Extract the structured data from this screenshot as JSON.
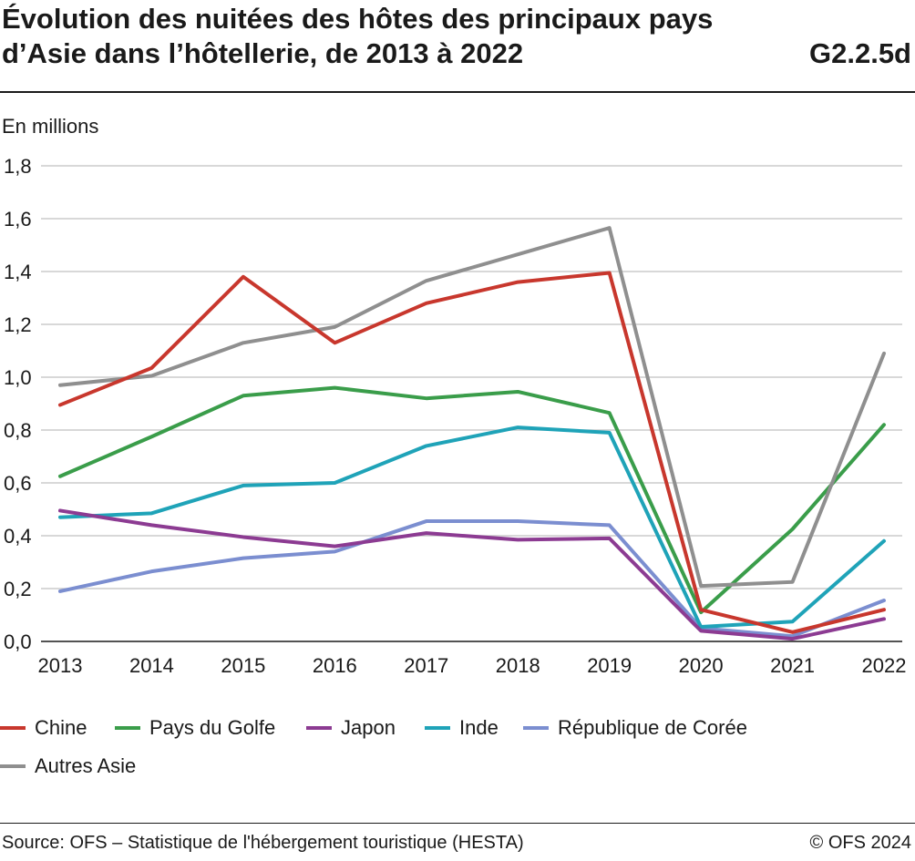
{
  "header": {
    "title_line1": "Évolution des nuitées des hôtes des principaux pays",
    "title_line2": "d’Asie dans l’hôtellerie, de 2013 à 2022",
    "code": "G2.2.5d"
  },
  "footer": {
    "source": "Source: OFS – Statistique de l'hébergement touristique (HESTA)",
    "copyright": "© OFS 2024"
  },
  "chart_data": {
    "type": "line",
    "title": "Évolution des nuitées des hôtes des principaux pays d’Asie dans l’hôtellerie, de 2013 à 2022",
    "ylabel": "En millions",
    "xlabel": "",
    "ylim": [
      0,
      1.8
    ],
    "yticks": [
      "0,0",
      "0,2",
      "0,4",
      "0,6",
      "0,8",
      "1,0",
      "1,2",
      "1,4",
      "1,6",
      "1,8"
    ],
    "categories": [
      "2013",
      "2014",
      "2015",
      "2016",
      "2017",
      "2018",
      "2019",
      "2020",
      "2021",
      "2022"
    ],
    "grid": true,
    "legend_position": "bottom",
    "series": [
      {
        "name": "Chine",
        "color": "#c8372d",
        "values": [
          0.895,
          1.035,
          1.38,
          1.13,
          1.28,
          1.36,
          1.395,
          0.12,
          0.035,
          0.12
        ]
      },
      {
        "name": "Pays du Golfe",
        "color": "#3a9d4a",
        "values": [
          0.625,
          0.775,
          0.93,
          0.96,
          0.92,
          0.945,
          0.865,
          0.11,
          0.425,
          0.82
        ]
      },
      {
        "name": "Japon",
        "color": "#8c3b92",
        "values": [
          0.495,
          0.44,
          0.395,
          0.36,
          0.41,
          0.385,
          0.39,
          0.04,
          0.01,
          0.085
        ]
      },
      {
        "name": "Inde",
        "color": "#1fa3b8",
        "values": [
          0.47,
          0.485,
          0.59,
          0.6,
          0.74,
          0.81,
          0.79,
          0.055,
          0.075,
          0.38
        ]
      },
      {
        "name": "République de Corée",
        "color": "#7b8ed0",
        "values": [
          0.19,
          0.265,
          0.315,
          0.34,
          0.455,
          0.455,
          0.44,
          0.05,
          0.02,
          0.155
        ]
      },
      {
        "name": "Autres Asie",
        "color": "#8f8f8f",
        "values": [
          0.97,
          1.005,
          1.13,
          1.19,
          1.365,
          1.465,
          1.565,
          0.21,
          0.225,
          1.09
        ]
      }
    ]
  }
}
